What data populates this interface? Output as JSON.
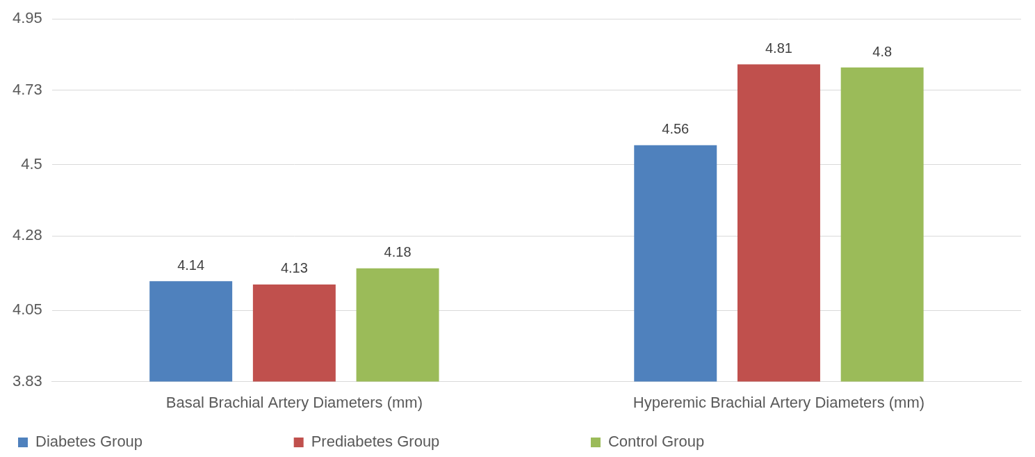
{
  "chart_data": {
    "type": "bar",
    "categories": [
      "Basal Brachial Artery Diameters (mm)",
      "Hyperemic Brachial Artery Diameters (mm)"
    ],
    "series": [
      {
        "name": "Diabetes Group",
        "color": "#4f81bd",
        "values": [
          4.14,
          4.56
        ]
      },
      {
        "name": "Prediabetes Group",
        "color": "#c0504d",
        "values": [
          4.13,
          4.81
        ]
      },
      {
        "name": "Control Group",
        "color": "#9bbb59",
        "values": [
          4.18,
          4.8
        ]
      }
    ],
    "ylim": [
      3.83,
      4.95
    ],
    "yticks": [
      3.83,
      4.05,
      4.28,
      4.5,
      4.73,
      4.95
    ],
    "grid": true,
    "legend": "bottom-left",
    "data_labels": true
  }
}
